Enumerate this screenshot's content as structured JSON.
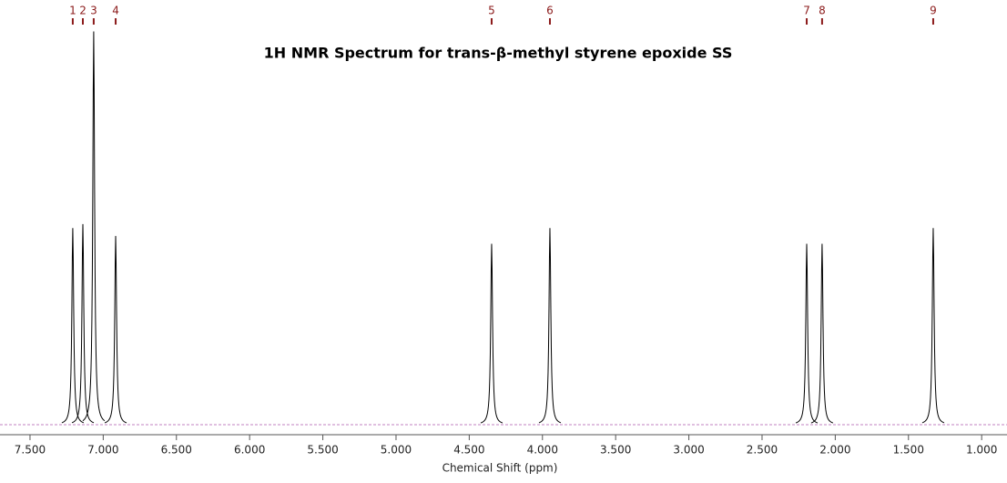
{
  "chart_data": {
    "type": "spectrum",
    "title": "1H NMR Spectrum for trans-β-methyl styrene epoxide SS",
    "x_label": "Chemical Shift (ppm)",
    "peak_labels": [
      "1",
      "2",
      "3",
      "4",
      "5",
      "6",
      "7",
      "8",
      "9"
    ],
    "x": [
      7.208,
      7.139,
      7.065,
      6.915,
      4.347,
      3.949,
      2.195,
      2.09,
      1.331
    ],
    "values": [
      50,
      51,
      100,
      48,
      46,
      50,
      46,
      46,
      50
    ],
    "color": "#000000",
    "label_color": "#8b1a1a",
    "xlim": [
      7.705,
      0.827
    ],
    "ylim": [
      0,
      108
    ],
    "xticks": [
      {
        "value": 7.5,
        "label": "7.500"
      },
      {
        "value": 7.0,
        "label": "7.000"
      },
      {
        "value": 6.5,
        "label": "6.500"
      },
      {
        "value": 6.0,
        "label": "6.000"
      },
      {
        "value": 5.5,
        "label": "5.500"
      },
      {
        "value": 5.0,
        "label": "5.000"
      },
      {
        "value": 4.5,
        "label": "4.500"
      },
      {
        "value": 4.0,
        "label": "4.000"
      },
      {
        "value": 3.5,
        "label": "3.500"
      },
      {
        "value": 3.0,
        "label": "3.000"
      },
      {
        "value": 2.5,
        "label": "2.500"
      },
      {
        "value": 2.0,
        "label": "2.000"
      },
      {
        "value": 1.5,
        "label": "1.500"
      },
      {
        "value": 1.0,
        "label": "1.000"
      }
    ]
  }
}
